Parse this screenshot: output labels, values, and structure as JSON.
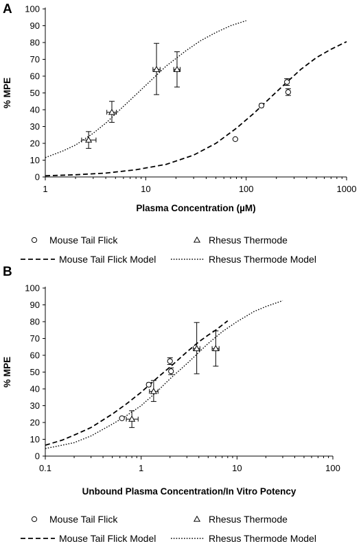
{
  "chart_data": [
    {
      "panel_label": "A",
      "type": "scatter",
      "x_scale": "log",
      "xlim": [
        1,
        1000
      ],
      "ylim": [
        0,
        100
      ],
      "x_ticks": [
        "1",
        "10",
        "100",
        "1000"
      ],
      "y_ticks": [
        "0",
        "10",
        "20",
        "30",
        "40",
        "50",
        "60",
        "70",
        "80",
        "90",
        "100"
      ],
      "xlabel": "Plasma Concentration (µM)",
      "ylabel": "% MPE",
      "legend_position": "bottom",
      "legend": [
        "Mouse Tail Flick",
        "Rhesus Thermode",
        "Mouse Tail Flick Model",
        "Rhesus Thermode Model"
      ],
      "series": [
        {
          "name": "Mouse Tail Flick",
          "kind": "points",
          "marker": "circle",
          "points": [
            {
              "x": 78,
              "y": 22.5
            },
            {
              "x": 142,
              "y": 42.5,
              "xerr": [
                136,
                148
              ]
            },
            {
              "x": 255,
              "y": 56.5,
              "yerr": [
                54.5,
                58.5
              ]
            },
            {
              "x": 262,
              "y": 50.5,
              "yerr": [
                48.5,
                52.5
              ]
            }
          ]
        },
        {
          "name": "Rhesus Thermode",
          "kind": "points",
          "marker": "triangle",
          "points": [
            {
              "x": 2.7,
              "y": 22,
              "yerr": [
                17,
                27
              ],
              "xerr": [
                2.3,
                3.2
              ]
            },
            {
              "x": 4.6,
              "y": 38.5,
              "yerr": [
                32.5,
                45
              ],
              "xerr": [
                4.1,
                5.1
              ]
            },
            {
              "x": 12.8,
              "y": 64,
              "yerr": [
                49,
                79.5
              ],
              "xerr": [
                11.8,
                13.9
              ]
            },
            {
              "x": 20.5,
              "y": 64,
              "yerr": [
                53.5,
                74.5
              ],
              "xerr": [
                19,
                22
              ]
            }
          ]
        },
        {
          "name": "Mouse Tail Flick Model",
          "kind": "curve",
          "dash": "dashed",
          "x": [
            1,
            2,
            4,
            8,
            16,
            30,
            50,
            80,
            120,
            180,
            250,
            350,
            500,
            700,
            1000
          ],
          "y": [
            0.7,
            1.3,
            2.3,
            4.3,
            7.5,
            13,
            20,
            29,
            38,
            48,
            56,
            64,
            71,
            76,
            80.5
          ]
        },
        {
          "name": "Rhesus Thermode Model",
          "kind": "curve",
          "dash": "dotted",
          "x": [
            1,
            1.5,
            2,
            3,
            4,
            6,
            8,
            12,
            16,
            25,
            35,
            50,
            70,
            100
          ],
          "y": [
            11.5,
            15.5,
            19,
            26,
            32,
            42,
            49,
            59,
            66,
            75,
            81,
            86,
            90,
            93
          ]
        }
      ]
    },
    {
      "panel_label": "B",
      "type": "scatter",
      "x_scale": "log",
      "xlim": [
        0.1,
        100
      ],
      "ylim": [
        0,
        100
      ],
      "x_ticks": [
        "0.1",
        "1",
        "10",
        "100"
      ],
      "y_ticks": [
        "0",
        "10",
        "20",
        "30",
        "40",
        "50",
        "60",
        "70",
        "80",
        "90",
        "100"
      ],
      "xlabel": "Unbound Plasma Concentration/In Vitro Potency",
      "ylabel": "% MPE",
      "legend_position": "bottom",
      "legend": [
        "Mouse Tail Flick",
        "Rhesus Thermode",
        "Mouse Tail Flick Model",
        "Rhesus Thermode Model"
      ],
      "series": [
        {
          "name": "Mouse Tail Flick",
          "kind": "points",
          "marker": "circle",
          "points": [
            {
              "x": 0.63,
              "y": 22.5
            },
            {
              "x": 1.2,
              "y": 42.5,
              "xerr": [
                1.15,
                1.26
              ]
            },
            {
              "x": 2.0,
              "y": 56.5,
              "yerr": [
                54.5,
                58.5
              ]
            },
            {
              "x": 2.05,
              "y": 50.5,
              "yerr": [
                48.5,
                52.5
              ]
            }
          ]
        },
        {
          "name": "Rhesus Thermode",
          "kind": "points",
          "marker": "triangle",
          "points": [
            {
              "x": 0.8,
              "y": 22,
              "yerr": [
                17,
                27
              ],
              "xerr": [
                0.7,
                0.93
              ]
            },
            {
              "x": 1.35,
              "y": 38.5,
              "yerr": [
                32.5,
                45
              ],
              "xerr": [
                1.22,
                1.5
              ]
            },
            {
              "x": 3.8,
              "y": 64,
              "yerr": [
                49,
                79.5
              ],
              "xerr": [
                3.5,
                4.1
              ]
            },
            {
              "x": 6.0,
              "y": 64,
              "yerr": [
                53.5,
                74.5
              ],
              "xerr": [
                5.5,
                6.5
              ]
            }
          ]
        },
        {
          "name": "Mouse Tail Flick Model",
          "kind": "curve",
          "dash": "dashed",
          "x": [
            0.1,
            0.15,
            0.2,
            0.3,
            0.5,
            0.7,
            1,
            1.5,
            2,
            3,
            4,
            5,
            6,
            8
          ],
          "y": [
            6.5,
            9.5,
            12.5,
            17,
            25,
            31,
            38,
            47,
            53,
            62,
            68,
            72,
            75,
            80.5
          ]
        },
        {
          "name": "Rhesus Thermode Model",
          "kind": "curve",
          "dash": "dotted",
          "x": [
            0.1,
            0.15,
            0.2,
            0.3,
            0.5,
            0.7,
            1,
            1.5,
            2,
            3,
            5,
            7,
            10,
            15,
            20,
            30
          ],
          "y": [
            4.5,
            6.5,
            8,
            12,
            19,
            24,
            30,
            39,
            46,
            55,
            67,
            74,
            80,
            86,
            89,
            92.5
          ]
        }
      ]
    }
  ]
}
